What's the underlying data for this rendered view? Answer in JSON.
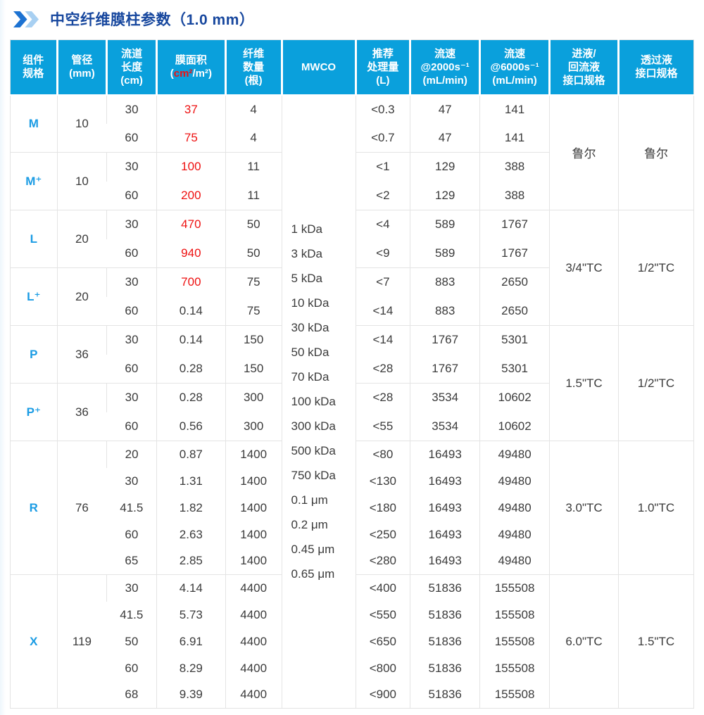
{
  "page": {
    "title": "中空纤维膜柱参数（1.0 mm）"
  },
  "table": {
    "headers": {
      "spec": "组件\n规格",
      "diameter": "管径\n(mm)",
      "length": "流道\n长度\n(cm)",
      "area_title": "膜面积",
      "area_open": "(",
      "area_red": "cm²",
      "area_rest": "/m²)",
      "fibers": "纤维\n数量\n(根)",
      "mwco": "MWCO",
      "throughput": "推荐\n处理量\n(L)",
      "flow2000": "流速\n@2000s⁻¹\n(mL/min)",
      "flow6000": "流速\n@6000s⁻¹\n(mL/min)",
      "inlet": "进液/\n回流液\n接口规格",
      "permeate": "透过液\n接口规格"
    },
    "mwco_items": [
      "1 kDa",
      "3 kDa",
      "5 kDa",
      "10 kDa",
      "30 kDa",
      "50 kDa",
      "70 kDa",
      "100 kDa",
      "300 kDa",
      "500 kDa",
      "750 kDa",
      "0.1 μm",
      "0.2 μm",
      "0.45 μm",
      "0.65 μm"
    ],
    "groups": [
      {
        "spec": "M",
        "diameter": "10",
        "rows": [
          {
            "length": "30",
            "area": "37",
            "red": true,
            "fibers": "4",
            "throughput": "<0.3",
            "flow2000": "47",
            "flow6000": "141"
          },
          {
            "length": "60",
            "area": "75",
            "red": true,
            "fibers": "4",
            "throughput": "<0.7",
            "flow2000": "47",
            "flow6000": "141"
          }
        ]
      },
      {
        "spec": "M⁺",
        "diameter": "10",
        "rows": [
          {
            "length": "30",
            "area": "100",
            "red": true,
            "fibers": "11",
            "throughput": "<1",
            "flow2000": "129",
            "flow6000": "388"
          },
          {
            "length": "60",
            "area": "200",
            "red": true,
            "fibers": "11",
            "throughput": "<2",
            "flow2000": "129",
            "flow6000": "388"
          }
        ]
      },
      {
        "spec": "L",
        "diameter": "20",
        "rows": [
          {
            "length": "30",
            "area": "470",
            "red": true,
            "fibers": "50",
            "throughput": "<4",
            "flow2000": "589",
            "flow6000": "1767"
          },
          {
            "length": "60",
            "area": "940",
            "red": true,
            "fibers": "50",
            "throughput": "<9",
            "flow2000": "589",
            "flow6000": "1767"
          }
        ]
      },
      {
        "spec": "L⁺",
        "diameter": "20",
        "rows": [
          {
            "length": "30",
            "area": "700",
            "red": true,
            "fibers": "75",
            "throughput": "<7",
            "flow2000": "883",
            "flow6000": "2650"
          },
          {
            "length": "60",
            "area": "0.14",
            "red": false,
            "fibers": "75",
            "throughput": "<14",
            "flow2000": "883",
            "flow6000": "2650"
          }
        ]
      },
      {
        "spec": "P",
        "diameter": "36",
        "rows": [
          {
            "length": "30",
            "area": "0.14",
            "red": false,
            "fibers": "150",
            "throughput": "<14",
            "flow2000": "1767",
            "flow6000": "5301"
          },
          {
            "length": "60",
            "area": "0.28",
            "red": false,
            "fibers": "150",
            "throughput": "<28",
            "flow2000": "1767",
            "flow6000": "5301"
          }
        ]
      },
      {
        "spec": "P⁺",
        "diameter": "36",
        "rows": [
          {
            "length": "30",
            "area": "0.28",
            "red": false,
            "fibers": "300",
            "throughput": "<28",
            "flow2000": "3534",
            "flow6000": "10602"
          },
          {
            "length": "60",
            "area": "0.56",
            "red": false,
            "fibers": "300",
            "throughput": "<55",
            "flow2000": "3534",
            "flow6000": "10602"
          }
        ]
      },
      {
        "spec": "R",
        "diameter": "76",
        "rows": [
          {
            "length": "20",
            "area": "0.87",
            "red": false,
            "fibers": "1400",
            "throughput": "<80",
            "flow2000": "16493",
            "flow6000": "49480"
          },
          {
            "length": "30",
            "area": "1.31",
            "red": false,
            "fibers": "1400",
            "throughput": "<130",
            "flow2000": "16493",
            "flow6000": "49480"
          },
          {
            "length": "41.5",
            "area": "1.82",
            "red": false,
            "fibers": "1400",
            "throughput": "<180",
            "flow2000": "16493",
            "flow6000": "49480"
          },
          {
            "length": "60",
            "area": "2.63",
            "red": false,
            "fibers": "1400",
            "throughput": "<250",
            "flow2000": "16493",
            "flow6000": "49480"
          },
          {
            "length": "65",
            "area": "2.85",
            "red": false,
            "fibers": "1400",
            "throughput": "<280",
            "flow2000": "16493",
            "flow6000": "49480"
          }
        ]
      },
      {
        "spec": "X",
        "diameter": "119",
        "rows": [
          {
            "length": "30",
            "area": "4.14",
            "red": false,
            "fibers": "4400",
            "throughput": "<400",
            "flow2000": "51836",
            "flow6000": "155508"
          },
          {
            "length": "41.5",
            "area": "5.73",
            "red": false,
            "fibers": "4400",
            "throughput": "<550",
            "flow2000": "51836",
            "flow6000": "155508"
          },
          {
            "length": "50",
            "area": "6.91",
            "red": false,
            "fibers": "4400",
            "throughput": "<650",
            "flow2000": "51836",
            "flow6000": "155508"
          },
          {
            "length": "60",
            "area": "8.29",
            "red": false,
            "fibers": "4400",
            "throughput": "<800",
            "flow2000": "51836",
            "flow6000": "155508"
          },
          {
            "length": "68",
            "area": "9.39",
            "red": false,
            "fibers": "4400",
            "throughput": "<900",
            "flow2000": "51836",
            "flow6000": "155508"
          }
        ]
      }
    ],
    "interfaces": [
      {
        "rowspan": 4,
        "inlet": "鲁尔",
        "permeate": "鲁尔"
      },
      {
        "rowspan": 4,
        "inlet": "3/4\"TC",
        "permeate": "1/2\"TC"
      },
      {
        "rowspan": 4,
        "inlet": "1.5\"TC",
        "permeate": "1/2\"TC"
      },
      {
        "rowspan": 5,
        "inlet": "3.0\"TC",
        "permeate": "1.0\"TC"
      },
      {
        "rowspan": 5,
        "inlet": "6.0\"TC",
        "permeate": "1.5\"TC"
      }
    ],
    "colors": {
      "header_bg": "#0aa0dc",
      "spec_blue": "#1b9ce4",
      "highlight_red": "#ee1111",
      "title_navy": "#17479e"
    }
  }
}
